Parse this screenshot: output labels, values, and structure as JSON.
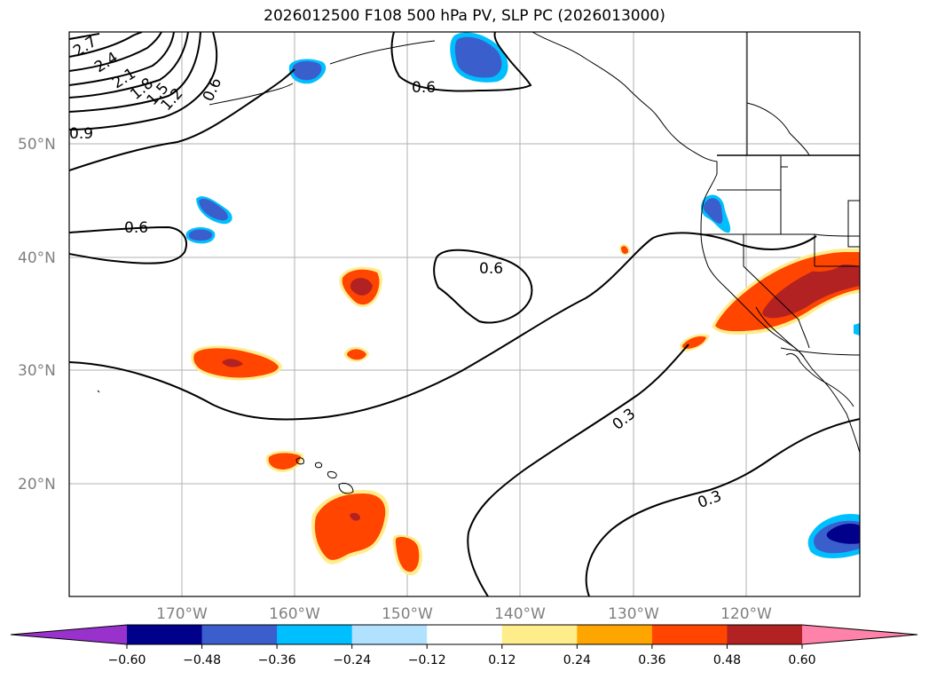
{
  "title": "2026012500 F108 500 hPa PV, SLP PC (2026013000)",
  "lat_labels": [
    "50°N",
    "40°N",
    "30°N",
    "20°N"
  ],
  "lon_labels": [
    "170°W",
    "160°W",
    "150°W",
    "140°W",
    "130°W",
    "120°W"
  ],
  "colorbar": {
    "colors": [
      "#9932cc",
      "#00008b",
      "#3a5fcd",
      "#00bfff",
      "#b0e2ff",
      "#ffffff",
      "#ffec8b",
      "#ffa500",
      "#ff4500",
      "#b22222",
      "#ff82ab"
    ],
    "tick_labels": [
      "−0.60",
      "−0.48",
      "−0.36",
      "−0.24",
      "−0.12",
      "0.12",
      "0.24",
      "0.36",
      "0.48",
      "0.60"
    ]
  },
  "contour_labels": [
    "2.7",
    "2.4",
    "2.1",
    "1.8",
    "1.5",
    "1.2",
    "0.9",
    "0.6",
    "0.6",
    "0.6",
    "0.6",
    "0.3",
    "0.3"
  ]
}
